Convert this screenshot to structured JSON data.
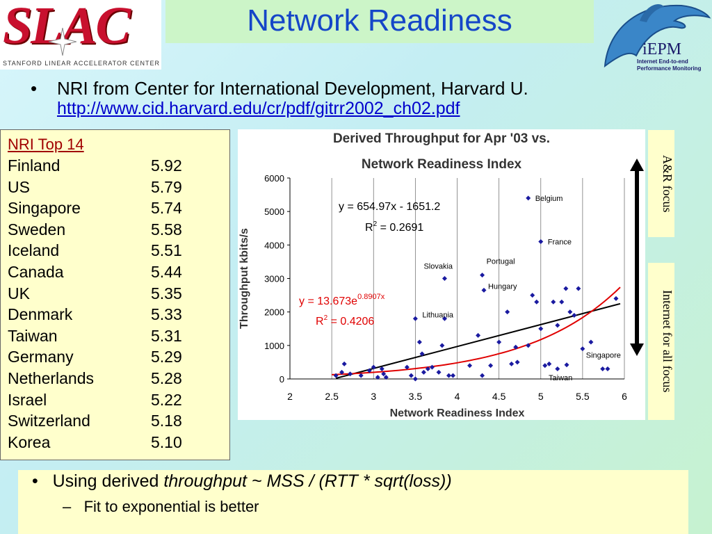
{
  "logo": {
    "word": "SLAC",
    "subtitle": "Stanford Linear Accelerator Center"
  },
  "title": "Network Readiness",
  "iepm": {
    "name": "iEPM",
    "line1": "Internet End-to-end",
    "line2": "Performance Monitoring"
  },
  "bullet1": {
    "text": "NRI from Center for International Development, Harvard U.",
    "link": "http://www.cid.harvard.edu/cr/pdf/gitrr2002_ch02.pdf"
  },
  "nri": {
    "title": "NRI Top 14",
    "rows": [
      {
        "country": "Finland",
        "value": "5.92"
      },
      {
        "country": "US",
        "value": "5.79"
      },
      {
        "country": "Singapore",
        "value": "5.74"
      },
      {
        "country": "Sweden",
        "value": "5.58"
      },
      {
        "country": "Iceland",
        "value": "5.51"
      },
      {
        "country": "Canada",
        "value": "5.44"
      },
      {
        "country": "UK",
        "value": "5.35"
      },
      {
        "country": "Denmark",
        "value": "5.33"
      },
      {
        "country": "Taiwan",
        "value": "5.31"
      },
      {
        "country": "Germany",
        "value": "5.29"
      },
      {
        "country": "Netherlands",
        "value": "5.28"
      },
      {
        "country": "Israel",
        "value": "5.22"
      },
      {
        "country": "Switzerland",
        "value": "5.18"
      },
      {
        "country": "Korea",
        "value": "5.10"
      }
    ]
  },
  "side": {
    "ar": "A&R focus",
    "inet": "Internet for all focus"
  },
  "bottom": {
    "bullet_prefix": "Using derived ",
    "bullet_italic": "throughput ~ MSS / (RTT * sqrt(loss))",
    "sub": "Fit to exponential is better"
  },
  "colors": {
    "title": "#1546c8",
    "points": "#1a1aa0",
    "linear_fit": "#000000",
    "exp_fit": "#e00000",
    "arrow": "#000000"
  },
  "chart_data": {
    "type": "scatter",
    "title_line1": "Derived Throughput for Apr '03 vs.",
    "title_line2": "Network Readiness Index",
    "xlabel": "Network Readiness Index",
    "ylabel": "Throughput kbits/s",
    "xlim": [
      2,
      6
    ],
    "ylim": [
      0,
      6000
    ],
    "xticks": [
      "2",
      "2.5",
      "3",
      "3.5",
      "4",
      "4.5",
      "5",
      "5.5",
      "6"
    ],
    "yticks": [
      "0",
      "1000",
      "2000",
      "3000",
      "4000",
      "5000",
      "6000"
    ],
    "grid": "vertical",
    "points": [
      [
        2.55,
        100
      ],
      [
        2.62,
        200
      ],
      [
        2.65,
        450
      ],
      [
        2.72,
        150
      ],
      [
        2.85,
        100
      ],
      [
        2.95,
        250
      ],
      [
        3.0,
        350
      ],
      [
        3.05,
        50
      ],
      [
        3.1,
        300
      ],
      [
        3.12,
        150
      ],
      [
        3.15,
        50
      ],
      [
        3.4,
        350
      ],
      [
        3.45,
        100
      ],
      [
        3.5,
        0
      ],
      [
        3.55,
        1100
      ],
      [
        3.58,
        750
      ],
      [
        3.6,
        200
      ],
      [
        3.65,
        300
      ],
      [
        3.7,
        350
      ],
      [
        3.78,
        200
      ],
      [
        3.82,
        1000
      ],
      [
        3.85,
        1800
      ],
      [
        3.9,
        100
      ],
      [
        3.95,
        100
      ],
      [
        4.15,
        400
      ],
      [
        4.25,
        1300
      ],
      [
        4.3,
        100
      ],
      [
        4.4,
        400
      ],
      [
        4.5,
        1100
      ],
      [
        4.6,
        2000
      ],
      [
        4.65,
        450
      ],
      [
        4.7,
        950
      ],
      [
        4.72,
        500
      ],
      [
        4.85,
        1000
      ],
      [
        4.9,
        2500
      ],
      [
        4.95,
        2300
      ],
      [
        5.0,
        1500
      ],
      [
        5.05,
        400
      ],
      [
        5.1,
        450
      ],
      [
        5.15,
        2300
      ],
      [
        5.2,
        1600
      ],
      [
        5.25,
        2300
      ],
      [
        5.3,
        2700
      ],
      [
        5.35,
        2000
      ],
      [
        5.4,
        1900
      ],
      [
        5.45,
        2700
      ],
      [
        5.5,
        900
      ],
      [
        5.6,
        1100
      ],
      [
        5.9,
        2400
      ],
      [
        5.2,
        300
      ],
      [
        5.8,
        300
      ]
    ],
    "labeled_points": [
      {
        "label": "Belgium",
        "x": 4.85,
        "y": 5400
      },
      {
        "label": "France",
        "x": 5.0,
        "y": 4100
      },
      {
        "label": "Slovakia",
        "x": 3.85,
        "y": 3000
      },
      {
        "label": "Portugal",
        "x": 4.3,
        "y": 3100
      },
      {
        "label": "Hungary",
        "x": 4.32,
        "y": 2650
      },
      {
        "label": "Lithuania",
        "x": 3.5,
        "y": 1800
      },
      {
        "label": "Singapore",
        "x": 5.74,
        "y": 300
      },
      {
        "label": "Taiwan",
        "x": 5.31,
        "y": 420
      }
    ],
    "fits": [
      {
        "kind": "linear",
        "slope": 654.97,
        "intercept": -1651.2,
        "equation": "y = 654.97x - 1651.2",
        "r2_prefix": "R",
        "r2_value": " = 0.2691"
      },
      {
        "kind": "exponential",
        "a": 13.673,
        "b": 0.8907,
        "equation_prefix": "y = 13.673e",
        "equation_exp": "0.8907x",
        "r2_prefix": "R",
        "r2_value": " = 0.4206"
      }
    ]
  }
}
